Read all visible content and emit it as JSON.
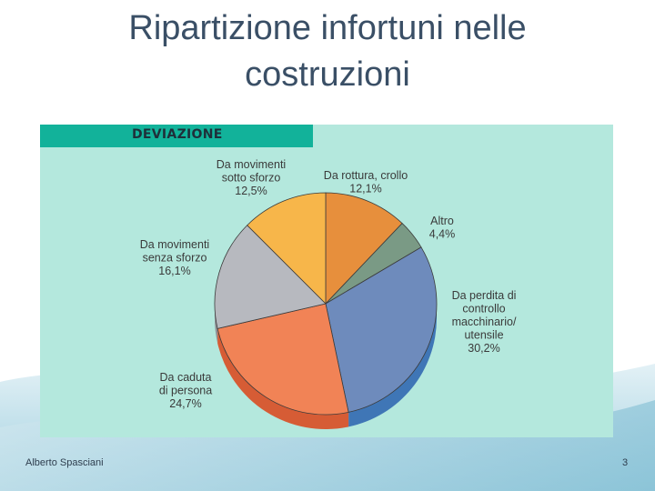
{
  "slide": {
    "title": "Ripartizione infortuni nelle costruzioni",
    "author": "Alberto Spasciani",
    "page_number": "3"
  },
  "chart_data": {
    "type": "pie",
    "title": "DEVIAZIONE",
    "slices": [
      {
        "label": [
          "Da rottura, crollo"
        ],
        "value": 12.1,
        "value_text": "12,1%",
        "color": "#e78f3c",
        "side": "#b96d28"
      },
      {
        "label": [
          "Altro"
        ],
        "value": 4.4,
        "value_text": "4,4%",
        "color": "#7a9a85",
        "side": "#5b7765"
      },
      {
        "label": [
          "Da perdita di",
          "controllo",
          "macchinario/",
          "utensile"
        ],
        "value": 30.2,
        "value_text": "30,2%",
        "color": "#6e8bbc",
        "side": "#3f76b6"
      },
      {
        "label": [
          "Da caduta",
          "di persona"
        ],
        "value": 24.7,
        "value_text": "24,7%",
        "color": "#f18356",
        "side": "#d65c35"
      },
      {
        "label": [
          "Da movimenti",
          "senza sforzo"
        ],
        "value": 16.1,
        "value_text": "16,1%",
        "color": "#b7b9bf",
        "side": "#8f9196"
      },
      {
        "label": [
          "Da movimenti",
          "sotto sforzo"
        ],
        "value": 12.5,
        "value_text": "12,5%",
        "color": "#f7b64a",
        "side": "#d0922c"
      }
    ],
    "start_angle_deg": 0,
    "direction": "clockwise",
    "colors": {
      "panel_bg": "#b4e8dd",
      "header_bg": "#12b29a",
      "label_text": "#3a3a3a"
    }
  }
}
